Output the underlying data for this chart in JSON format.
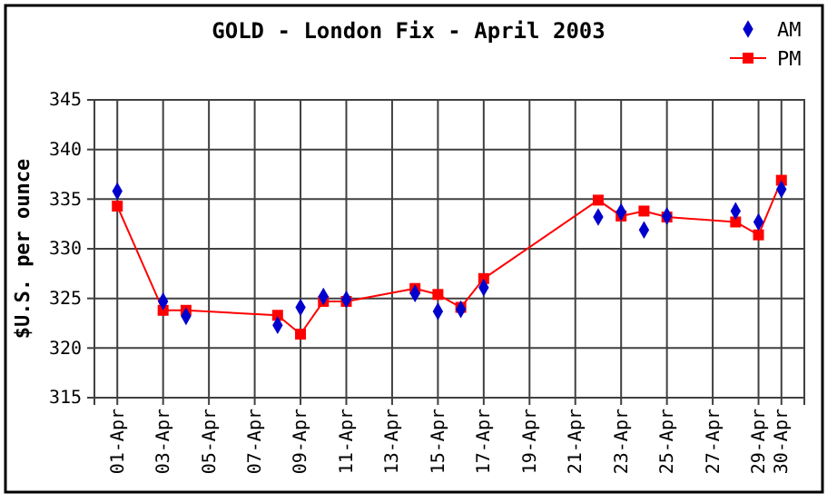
{
  "chart_data": {
    "type": "line",
    "title": "GOLD - London Fix - April 2003",
    "ylabel": "$U.S. per ounce",
    "x": [
      "2003-04-01",
      "2003-04-03",
      "2003-04-04",
      "2003-04-08",
      "2003-04-09",
      "2003-04-10",
      "2003-04-11",
      "2003-04-14",
      "2003-04-15",
      "2003-04-16",
      "2003-04-17",
      "2003-04-22",
      "2003-04-23",
      "2003-04-24",
      "2003-04-25",
      "2003-04-28",
      "2003-04-29",
      "2003-04-30"
    ],
    "series": [
      {
        "name": "AM",
        "type": "scatter",
        "marker": "diamond",
        "color": "#0000cc",
        "values": [
          335.8,
          324.7,
          323.2,
          322.3,
          324.1,
          325.2,
          324.9,
          325.5,
          323.7,
          323.9,
          326.1,
          333.2,
          333.7,
          331.9,
          333.3,
          333.8,
          332.7,
          336.0
        ]
      },
      {
        "name": "PM",
        "marker": "square",
        "color": "#ff0000",
        "values": [
          334.3,
          323.8,
          323.8,
          323.3,
          321.4,
          324.7,
          324.7,
          326.0,
          325.4,
          324.1,
          327.0,
          334.9,
          333.3,
          333.8,
          333.2,
          332.7,
          331.4,
          336.9
        ]
      }
    ],
    "xlim": [
      "2003-03-31",
      "2003-05-01"
    ],
    "xticks": [
      {
        "value": "2003-04-01",
        "label": "01-Apr"
      },
      {
        "value": "2003-04-03",
        "label": "03-Apr"
      },
      {
        "value": "2003-04-05",
        "label": "05-Apr"
      },
      {
        "value": "2003-04-07",
        "label": "07-Apr"
      },
      {
        "value": "2003-04-09",
        "label": "09-Apr"
      },
      {
        "value": "2003-04-11",
        "label": "11-Apr"
      },
      {
        "value": "2003-04-13",
        "label": "13-Apr"
      },
      {
        "value": "2003-04-15",
        "label": "15-Apr"
      },
      {
        "value": "2003-04-17",
        "label": "17-Apr"
      },
      {
        "value": "2003-04-19",
        "label": "19-Apr"
      },
      {
        "value": "2003-04-21",
        "label": "21-Apr"
      },
      {
        "value": "2003-04-23",
        "label": "23-Apr"
      },
      {
        "value": "2003-04-25",
        "label": "25-Apr"
      },
      {
        "value": "2003-04-27",
        "label": "27-Apr"
      },
      {
        "value": "2003-04-29",
        "label": "29-Apr"
      },
      {
        "value": "2003-04-30",
        "label": "30-Apr"
      }
    ],
    "ylim": [
      315,
      345
    ],
    "yticks": [
      315,
      320,
      325,
      330,
      335,
      340,
      345
    ],
    "grid": true,
    "legend": "top right"
  }
}
